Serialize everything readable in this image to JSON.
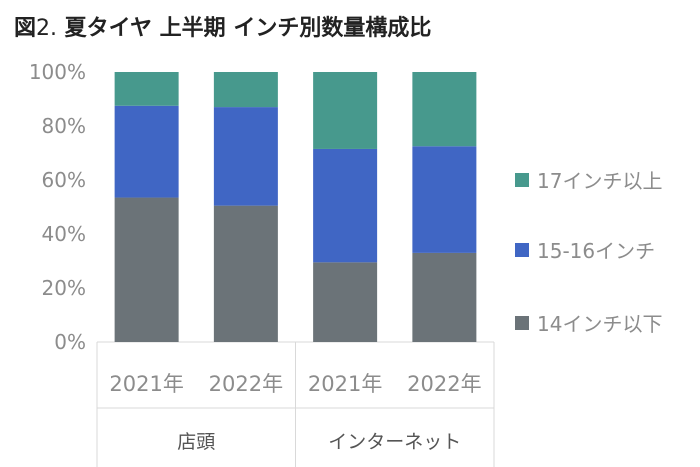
{
  "title": {
    "prefix": "図",
    "number": "2.",
    "text": " 夏タイヤ 上半期 インチ別数量構成比"
  },
  "chart_data": {
    "type": "bar",
    "stacked": true,
    "percent": true,
    "categories": [
      "2021年",
      "2022年",
      "2021年",
      "2022年"
    ],
    "groups": [
      {
        "label": "店頭",
        "categories": [
          0,
          1
        ]
      },
      {
        "label": "インターネット",
        "categories": [
          2,
          3
        ]
      }
    ],
    "series": [
      {
        "name": "14インチ以下",
        "color": "#6b7378",
        "values": [
          53.5,
          50.5,
          29.5,
          33
        ]
      },
      {
        "name": "15-16インチ",
        "color": "#4066c4",
        "values": [
          34,
          36.5,
          42,
          39.5
        ]
      },
      {
        "name": "17インチ以上",
        "color": "#47998d",
        "values": [
          12.5,
          13,
          28.5,
          27.5
        ]
      }
    ],
    "y_ticks": [
      "0%",
      "20%",
      "40%",
      "60%",
      "80%",
      "100%"
    ],
    "ylim": [
      0,
      100
    ],
    "grid": false,
    "legend_position": "right"
  }
}
